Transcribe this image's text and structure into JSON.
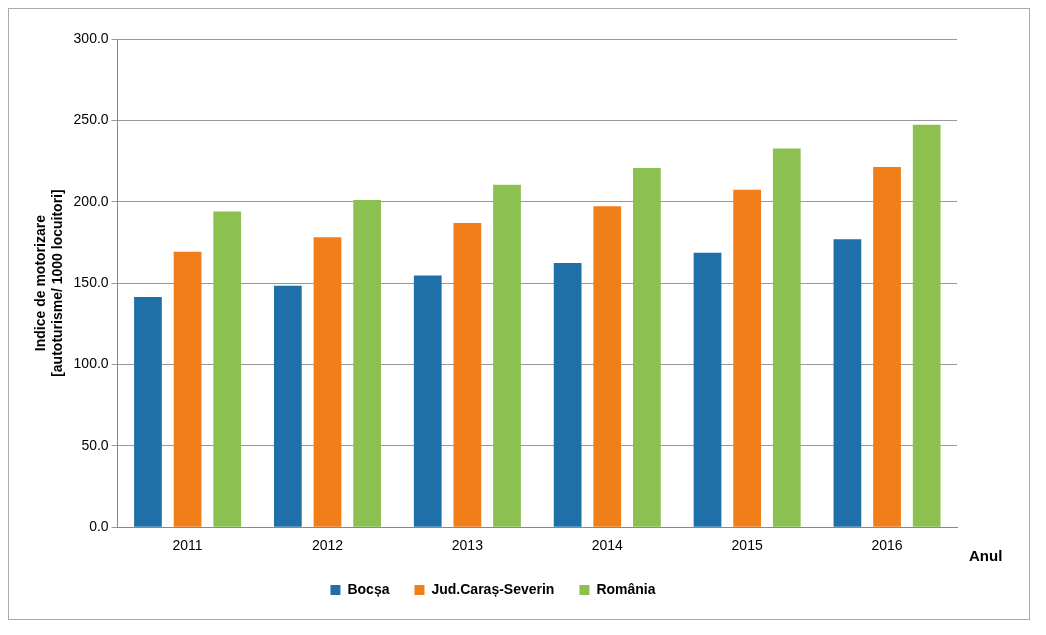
{
  "chart_data": {
    "type": "bar",
    "ylabel": "Indice de motorizare\n[autoturisme/ 1000 locuitori]",
    "xlabel": "Anul",
    "categories": [
      "2011",
      "2012",
      "2013",
      "2014",
      "2015",
      "2016"
    ],
    "series": [
      {
        "name": "Bocșa",
        "color": "#1f6fa8",
        "values": [
          141.4,
          148.4,
          154.7,
          162.3,
          168.7,
          176.9
        ]
      },
      {
        "name": "Jud.Caraș-Severin",
        "color": "#f07f1a",
        "values": [
          169.3,
          178.2,
          187.0,
          197.2,
          207.4,
          221.3
        ]
      },
      {
        "name": "România",
        "color": "#8cc152",
        "values": [
          194.0,
          201.0,
          210.5,
          220.7,
          232.7,
          247.3
        ]
      }
    ],
    "ylim": [
      0,
      300
    ],
    "yticks": [
      {
        "value": 0,
        "label": "0.0"
      },
      {
        "value": 50,
        "label": "50.0"
      },
      {
        "value": 100,
        "label": "100.0"
      },
      {
        "value": 150,
        "label": "150.0"
      },
      {
        "value": 200,
        "label": "200.0"
      },
      {
        "value": 250,
        "label": "250.0"
      },
      {
        "value": 300,
        "label": "300.0"
      }
    ],
    "grid": "y",
    "legend": "bottom"
  }
}
